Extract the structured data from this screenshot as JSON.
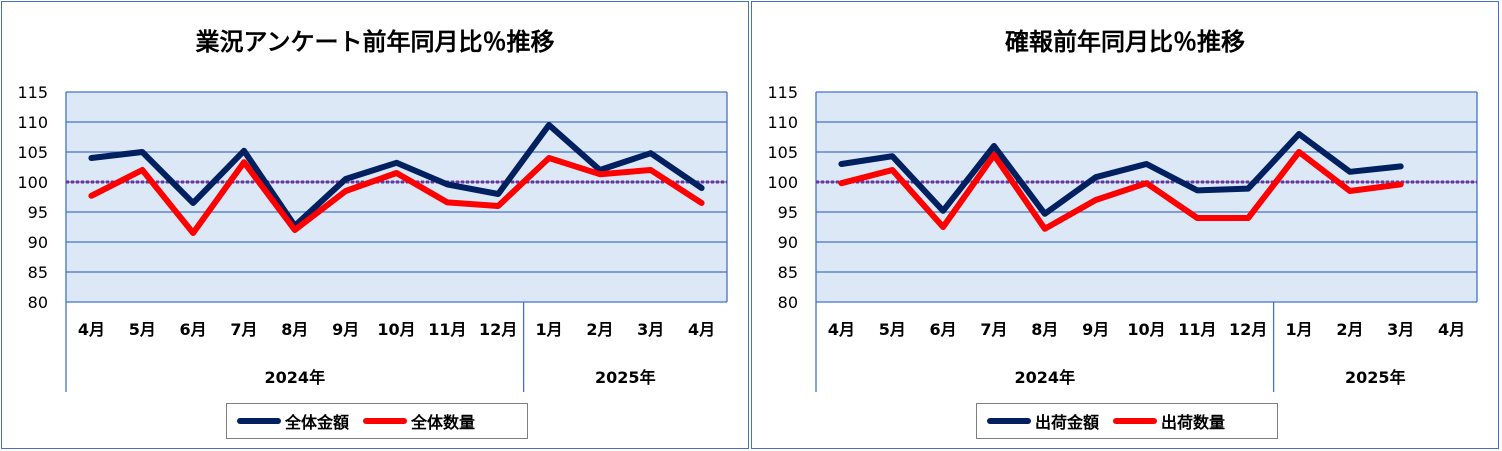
{
  "colors": {
    "series_primary": "#002060",
    "series_secondary": "#ff0000",
    "plot_background": "#dde8f6",
    "gridline": "#4472c4",
    "reference_line": "#7030a0",
    "panel_border": "#4472c4"
  },
  "chart_data": [
    {
      "type": "line",
      "title": "業況アンケート前年同月比％推移",
      "categories": [
        "4月",
        "5月",
        "6月",
        "7月",
        "8月",
        "9月",
        "10月",
        "11月",
        "12月",
        "1月",
        "2月",
        "3月",
        "4月"
      ],
      "year_groups": [
        {
          "label": "2024年",
          "count": 9
        },
        {
          "label": "2025年",
          "count": 4
        }
      ],
      "ylim": [
        80,
        115
      ],
      "yticks": [
        80,
        85,
        90,
        95,
        100,
        105,
        110,
        115
      ],
      "reference_value": 100,
      "grid": true,
      "legend_position": "bottom",
      "series": [
        {
          "name": "全体金額",
          "color": "#002060",
          "values": [
            104,
            105,
            96.5,
            105.2,
            92.7,
            100.5,
            103.2,
            99.6,
            98,
            109.5,
            102,
            104.8,
            99
          ]
        },
        {
          "name": "全体数量",
          "color": "#ff0000",
          "values": [
            97.7,
            102,
            91.5,
            103.3,
            92,
            98.5,
            101.5,
            96.6,
            96,
            104,
            101.3,
            102,
            96.5
          ]
        }
      ]
    },
    {
      "type": "line",
      "title": "確報前年同月比％推移",
      "categories": [
        "4月",
        "5月",
        "6月",
        "7月",
        "8月",
        "9月",
        "10月",
        "11月",
        "12月",
        "1月",
        "2月",
        "3月",
        "4月"
      ],
      "year_groups": [
        {
          "label": "2024年",
          "count": 9
        },
        {
          "label": "2025年",
          "count": 4
        }
      ],
      "ylim": [
        80,
        115
      ],
      "yticks": [
        80,
        85,
        90,
        95,
        100,
        105,
        110,
        115
      ],
      "reference_value": 100,
      "grid": true,
      "legend_position": "bottom",
      "series": [
        {
          "name": "出荷金額",
          "color": "#002060",
          "values": [
            103,
            104.3,
            95.2,
            106,
            94.7,
            100.8,
            103,
            98.6,
            98.9,
            108,
            101.7,
            102.6,
            null
          ]
        },
        {
          "name": "出荷数量",
          "color": "#ff0000",
          "values": [
            99.8,
            102,
            92.5,
            104.5,
            92.2,
            97,
            99.8,
            94,
            94,
            105,
            98.5,
            99.6,
            null
          ]
        }
      ]
    }
  ]
}
